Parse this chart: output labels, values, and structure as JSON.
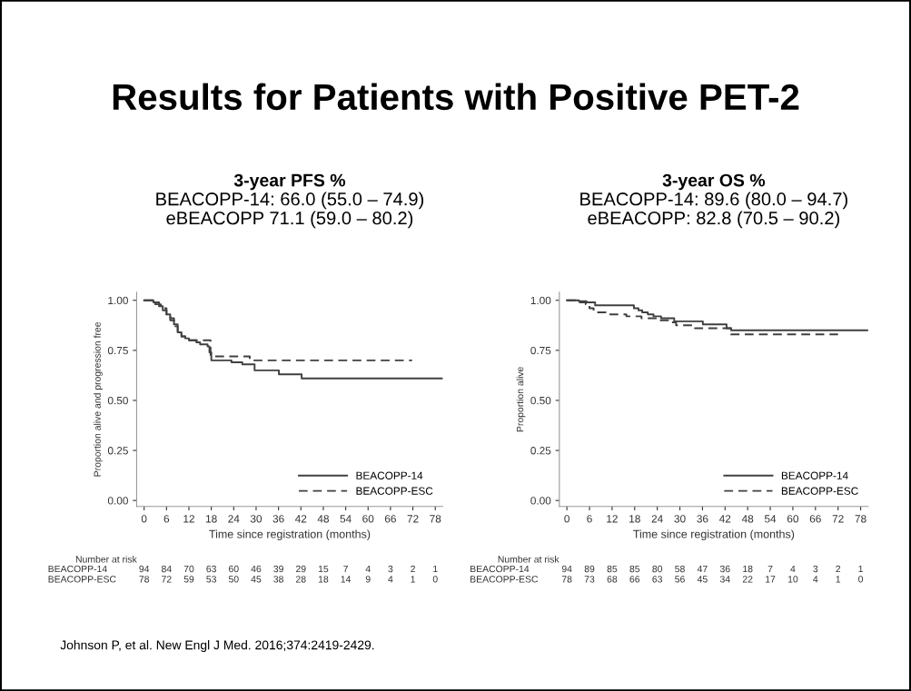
{
  "chart_data": [
    {
      "type": "step",
      "title": "3-year PFS %",
      "subtitle": "BEACOPP-14: 66.0 (55.0 – 74.9)\neBEACOPP 71.1 (59.0 – 80.2)",
      "xlabel": "Time since registration (months)",
      "ylabel": "Proportion alive and progression free",
      "series": [
        {
          "name": "BEACOPP-14",
          "color": "#404040",
          "line_style": "solid",
          "x": [
            0,
            2.5,
            4,
            5,
            6,
            7,
            8,
            9,
            10,
            11,
            12,
            14,
            15,
            17,
            17.5,
            18,
            23.4,
            26.3,
            29.6,
            36.1,
            42.2,
            80
          ],
          "values": [
            1.0,
            0.99,
            0.97,
            0.95,
            0.93,
            0.91,
            0.88,
            0.84,
            0.82,
            0.81,
            0.8,
            0.79,
            0.78,
            0.77,
            0.74,
            0.7,
            0.69,
            0.68,
            0.65,
            0.63,
            0.61,
            0.61
          ]
        },
        {
          "name": "BEACOPP-ESC",
          "color": "#404040",
          "line_style": "dashed",
          "x": [
            0,
            3,
            4.5,
            6,
            7,
            8,
            9,
            10,
            11,
            17.8,
            28.3,
            71.8
          ],
          "values": [
            1.0,
            0.98,
            0.96,
            0.93,
            0.9,
            0.87,
            0.84,
            0.82,
            0.8,
            0.72,
            0.7,
            0.7
          ]
        }
      ],
      "xlim": [
        -2,
        80
      ],
      "xticks": [
        0,
        6,
        12,
        18,
        24,
        30,
        36,
        42,
        48,
        54,
        60,
        66,
        72,
        78
      ],
      "ylim": [
        -0.03,
        1.04
      ],
      "yticks": [
        {
          "value": 0,
          "label": "0.00"
        },
        {
          "value": 0.25,
          "label": "0.25"
        },
        {
          "value": 0.5,
          "label": "0.50"
        },
        {
          "value": 0.75,
          "label": "0.75"
        },
        {
          "value": 1,
          "label": "1.00"
        }
      ],
      "grid": false,
      "legend": "bottom right",
      "annotations": [
        "Number at risk",
        "BEACOPP-14 94 84 70 63 60 46 39 29 15 7 4 3 2 1",
        "BEACOPP-ESC 78 72 59 53 50 45 38 28 18 14 9 4 1 0",
        "Results for Patients with Positive PET-2",
        "Johnson P, et al. New Engl J Med. 2016;374:2419-2429."
      ]
    },
    {
      "type": "step",
      "title": "3-year OS %",
      "subtitle": "BEACOPP-14: 89.6 (80.0 – 94.7)\neBEACOPP: 82.8 (70.5 – 90.2)",
      "xlabel": "Time since registration (months)",
      "ylabel": "Proportion alive",
      "series": [
        {
          "name": "BEACOPP-14",
          "color": "#404040",
          "line_style": "solid",
          "x": [
            0,
            3.2,
            5.2,
            7.5,
            17.8,
            19,
            20,
            21.5,
            23,
            25,
            28.5,
            36.1,
            42.4,
            43.6,
            80
          ],
          "values": [
            1.0,
            0.995,
            0.99,
            0.975,
            0.96,
            0.95,
            0.94,
            0.93,
            0.92,
            0.91,
            0.895,
            0.88,
            0.86,
            0.85,
            0.85
          ]
        },
        {
          "name": "BEACOPP-ESC",
          "color": "#404040",
          "line_style": "dashed",
          "x": [
            0,
            3,
            5,
            6,
            7.1,
            10.3,
            15.8,
            19.8,
            24.2,
            27.7,
            29,
            34,
            43.6,
            72
          ],
          "values": [
            1.0,
            0.99,
            0.98,
            0.96,
            0.94,
            0.93,
            0.92,
            0.91,
            0.9,
            0.89,
            0.875,
            0.86,
            0.83,
            0.83
          ]
        }
      ],
      "xlim": [
        -2,
        80
      ],
      "xticks": [
        0,
        6,
        12,
        18,
        24,
        30,
        36,
        42,
        48,
        54,
        60,
        66,
        72,
        78
      ],
      "ylim": [
        -0.03,
        1.04
      ],
      "yticks": [
        {
          "value": 0,
          "label": "0.00"
        },
        {
          "value": 0.25,
          "label": "0.25"
        },
        {
          "value": 0.5,
          "label": "0.50"
        },
        {
          "value": 0.75,
          "label": "0.75"
        },
        {
          "value": 1,
          "label": "1.00"
        }
      ],
      "grid": false,
      "legend": "bottom right",
      "annotations": [
        "Number at risk",
        "BEACOPP-14 94 89 85 85 80 58 47 36 18 7 4 3 2 1",
        "BEACOPP-ESC 78 73 68 66 63 56 45 34 22 17 10 4 1 0"
      ]
    }
  ]
}
